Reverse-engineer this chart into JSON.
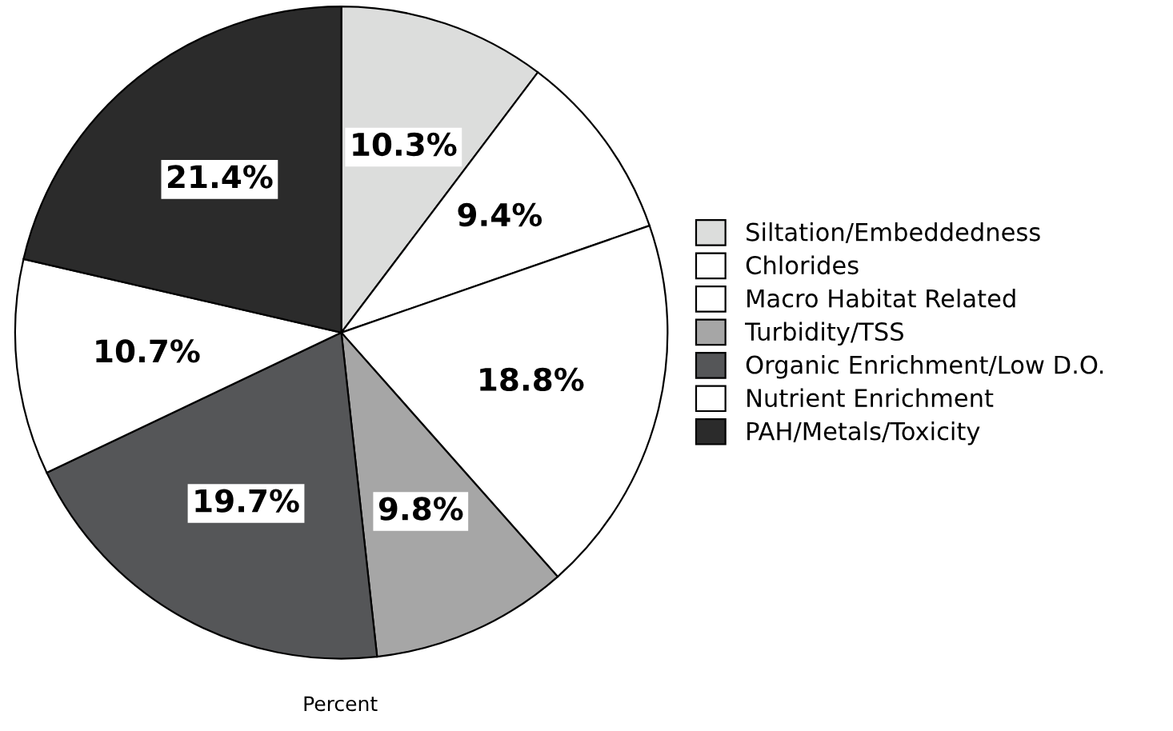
{
  "chart_data": {
    "type": "pie",
    "xlabel": "Percent",
    "categories": [
      "Siltation/Embeddedness",
      "Chlorides",
      "Macro Habitat Related",
      "Turbidity/TSS",
      "Organic Enrichment/Low D.O.",
      "Nutrient Enrichment",
      "PAH/Metals/Toxicity"
    ],
    "values": [
      10.3,
      9.4,
      18.8,
      9.8,
      19.7,
      10.7,
      21.4
    ],
    "value_labels": [
      "10.3%",
      "9.4%",
      "18.8%",
      "9.8%",
      "19.7%",
      "10.7%",
      "21.4%"
    ],
    "colors": [
      "#dcdddc",
      "#ffffff",
      "#ffffff",
      "#a6a6a6",
      "#555658",
      "#ffffff",
      "#2b2b2b"
    ],
    "legend": "right"
  }
}
